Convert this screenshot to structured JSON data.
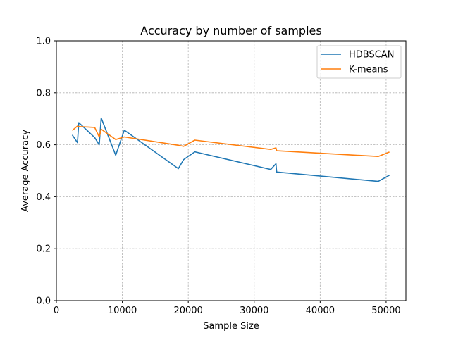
{
  "chart_data": {
    "type": "line",
    "title": "Accuracy by number of samples",
    "xlabel": "Sample Size",
    "ylabel": "Average Accuracy",
    "xlim": [
      0,
      53000
    ],
    "ylim": [
      0.0,
      1.0
    ],
    "xticks": [
      0,
      10000,
      20000,
      30000,
      40000,
      50000
    ],
    "xtick_labels": [
      "0",
      "10000",
      "20000",
      "30000",
      "40000",
      "50000"
    ],
    "yticks": [
      0.0,
      0.2,
      0.4,
      0.6,
      0.8,
      1.0
    ],
    "ytick_labels": [
      "0.0",
      "0.2",
      "0.4",
      "0.6",
      "0.8",
      "1.0"
    ],
    "grid": true,
    "legend_position": "top-right",
    "series": [
      {
        "name": "HDBSCAN",
        "color": "#1f77b4",
        "x": [
          2400,
          3200,
          3400,
          5800,
          6500,
          6800,
          9000,
          10300,
          18500,
          19300,
          21000,
          32500,
          33300,
          33400,
          48800,
          50500
        ],
        "y": [
          0.638,
          0.608,
          0.685,
          0.628,
          0.6,
          0.703,
          0.56,
          0.656,
          0.508,
          0.543,
          0.573,
          0.505,
          0.527,
          0.495,
          0.459,
          0.483
        ]
      },
      {
        "name": "K-means",
        "color": "#ff7f0e",
        "x": [
          2400,
          3200,
          3400,
          5800,
          6500,
          6800,
          9000,
          10300,
          18500,
          19300,
          21000,
          32500,
          33300,
          33400,
          48800,
          50500
        ],
        "y": [
          0.655,
          0.672,
          0.67,
          0.667,
          0.63,
          0.66,
          0.62,
          0.63,
          0.598,
          0.594,
          0.618,
          0.582,
          0.588,
          0.577,
          0.555,
          0.572
        ]
      }
    ]
  }
}
